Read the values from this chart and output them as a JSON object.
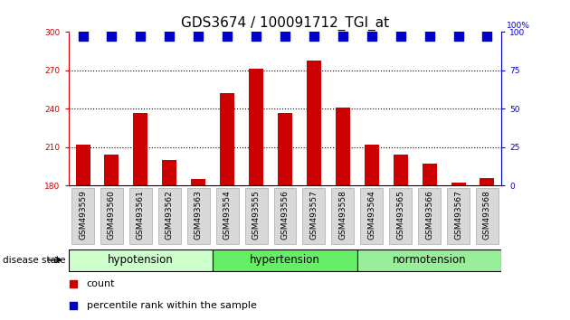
{
  "title": "GDS3674 / 100091712_TGI_at",
  "samples": [
    "GSM493559",
    "GSM493560",
    "GSM493561",
    "GSM493562",
    "GSM493563",
    "GSM493554",
    "GSM493555",
    "GSM493556",
    "GSM493557",
    "GSM493558",
    "GSM493564",
    "GSM493565",
    "GSM493566",
    "GSM493567",
    "GSM493568"
  ],
  "bar_values": [
    212,
    204,
    237,
    200,
    185,
    252,
    271,
    237,
    278,
    241,
    212,
    204,
    197,
    182,
    186
  ],
  "percentile_values": [
    97,
    97,
    97,
    97,
    97,
    97,
    97,
    97,
    97,
    97,
    97,
    97,
    97,
    97,
    97
  ],
  "bar_color": "#cc0000",
  "dot_color": "#0000cc",
  "ylim_left": [
    180,
    300
  ],
  "ylim_right": [
    0,
    100
  ],
  "yticks_left": [
    180,
    210,
    240,
    270,
    300
  ],
  "yticks_right": [
    0,
    25,
    50,
    75,
    100
  ],
  "groups": [
    {
      "label": "hypotension",
      "start": 0,
      "end": 5
    },
    {
      "label": "hypertension",
      "start": 5,
      "end": 10
    },
    {
      "label": "normotension",
      "start": 10,
      "end": 15
    }
  ],
  "group_colors": [
    "#ccffcc",
    "#66ee66",
    "#99ee99"
  ],
  "group_label": "disease state",
  "legend_count_label": "count",
  "legend_pct_label": "percentile rank within the sample",
  "tick_label_bg": "#d8d8d8",
  "dotted_line_color": "#000000",
  "bar_width": 0.5,
  "dot_size": 45,
  "dot_marker": "s",
  "right_axis_color": "#0000cc",
  "left_axis_color": "#cc0000",
  "title_fontsize": 11,
  "tick_fontsize": 6.5,
  "group_fontsize": 8.5,
  "legend_fontsize": 8
}
